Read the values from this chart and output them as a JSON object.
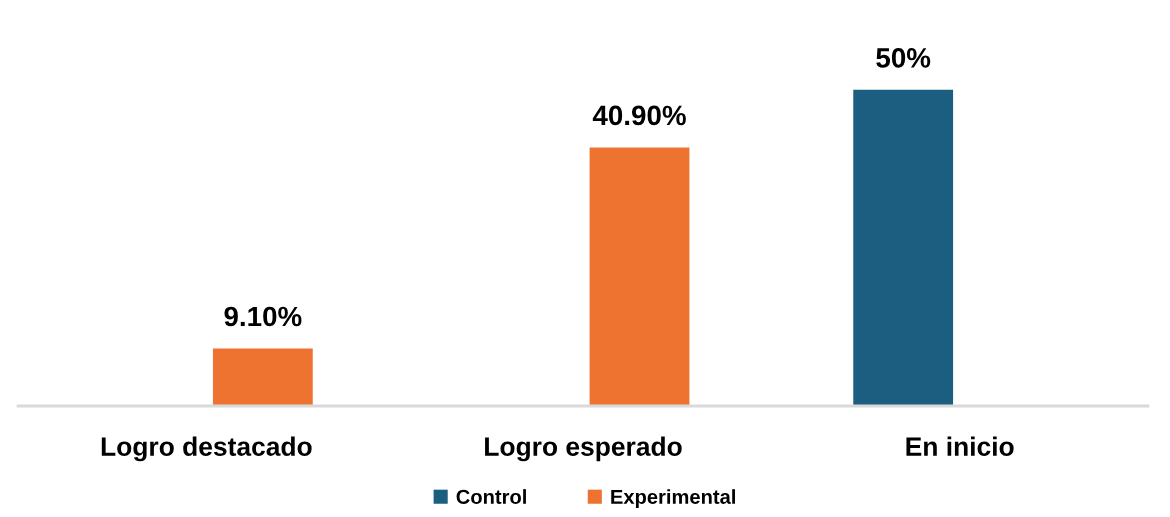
{
  "chart_data": {
    "type": "bar",
    "categories": [
      "Logro destacado",
      "Logro esperado",
      "En inicio"
    ],
    "series": [
      {
        "name": "Control",
        "color": "#1b5e80",
        "values": [
          null,
          null,
          50
        ],
        "value_labels": [
          null,
          null,
          "50%"
        ]
      },
      {
        "name": "Experimental",
        "color": "#ee7330",
        "values": [
          9.1,
          40.9,
          null
        ],
        "value_labels": [
          "9.10%",
          "40.90%",
          null
        ]
      }
    ],
    "legend": "bottom",
    "tick_labels": "x"
  }
}
